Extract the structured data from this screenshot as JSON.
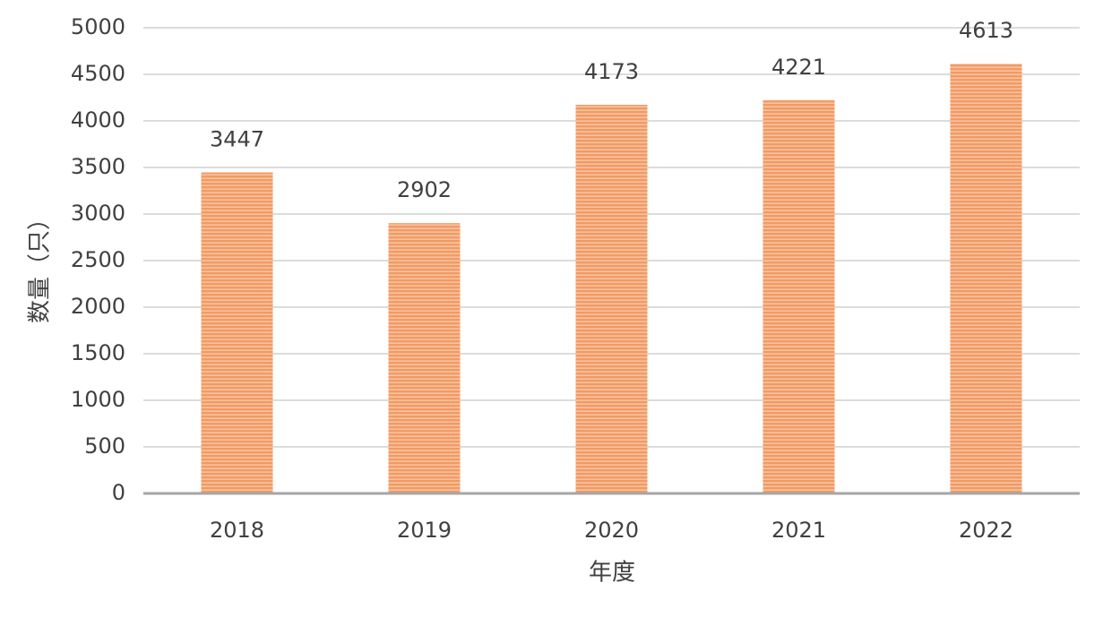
{
  "chart_data": {
    "type": "bar",
    "x_label": "年度",
    "y_label": "数量（只）",
    "categories": [
      "2018",
      "2019",
      "2020",
      "2021",
      "2022"
    ],
    "values": [
      3447,
      2902,
      4173,
      4221,
      4613
    ],
    "color": "#f29a63",
    "ylim": [
      0,
      5000
    ],
    "yticks": [
      0,
      500,
      1000,
      1500,
      2000,
      2500,
      3000,
      3500,
      4000,
      4500,
      5000
    ],
    "grid": true
  }
}
